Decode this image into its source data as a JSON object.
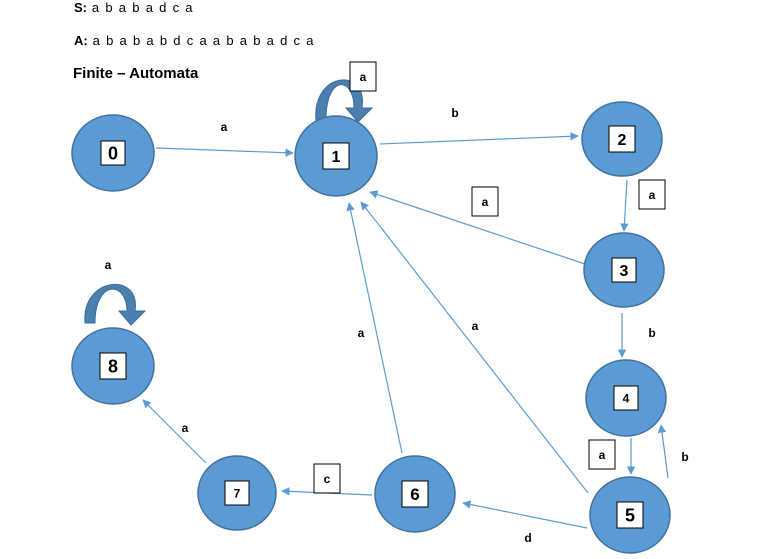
{
  "header": {
    "s_label": "S:",
    "s_value": "a b a b a d c a",
    "a_label": "A:",
    "a_value": "a b a b a b d c a a b a b a d c a",
    "title": "Finite – Automata"
  },
  "colors": {
    "node_fill": "#5b9bd5",
    "node_stroke": "#41719c",
    "edge": "#5b9bd5",
    "loop": "#4a7fb0"
  },
  "states": [
    {
      "id": "0",
      "label": "0"
    },
    {
      "id": "1",
      "label": "1"
    },
    {
      "id": "2",
      "label": "2"
    },
    {
      "id": "3",
      "label": "3"
    },
    {
      "id": "4",
      "label": "4"
    },
    {
      "id": "5",
      "label": "5"
    },
    {
      "id": "6",
      "label": "6"
    },
    {
      "id": "7",
      "label": "7"
    },
    {
      "id": "8",
      "label": "8"
    }
  ],
  "transitions": [
    {
      "from": "0",
      "to": "1",
      "symbol": "a"
    },
    {
      "from": "1",
      "to": "1",
      "symbol": "a"
    },
    {
      "from": "1",
      "to": "2",
      "symbol": "b"
    },
    {
      "from": "2",
      "to": "3",
      "symbol": "a"
    },
    {
      "from": "3",
      "to": "1",
      "symbol": "a"
    },
    {
      "from": "3",
      "to": "4",
      "symbol": "b"
    },
    {
      "from": "4",
      "to": "5",
      "symbol": "a"
    },
    {
      "from": "5",
      "to": "4",
      "symbol": "b"
    },
    {
      "from": "5",
      "to": "1",
      "symbol": "a"
    },
    {
      "from": "5",
      "to": "6",
      "symbol": "d"
    },
    {
      "from": "6",
      "to": "1",
      "symbol": "a"
    },
    {
      "from": "6",
      "to": "7",
      "symbol": "c"
    },
    {
      "from": "7",
      "to": "8",
      "symbol": "a"
    },
    {
      "from": "8",
      "to": "8",
      "symbol": "a"
    }
  ]
}
